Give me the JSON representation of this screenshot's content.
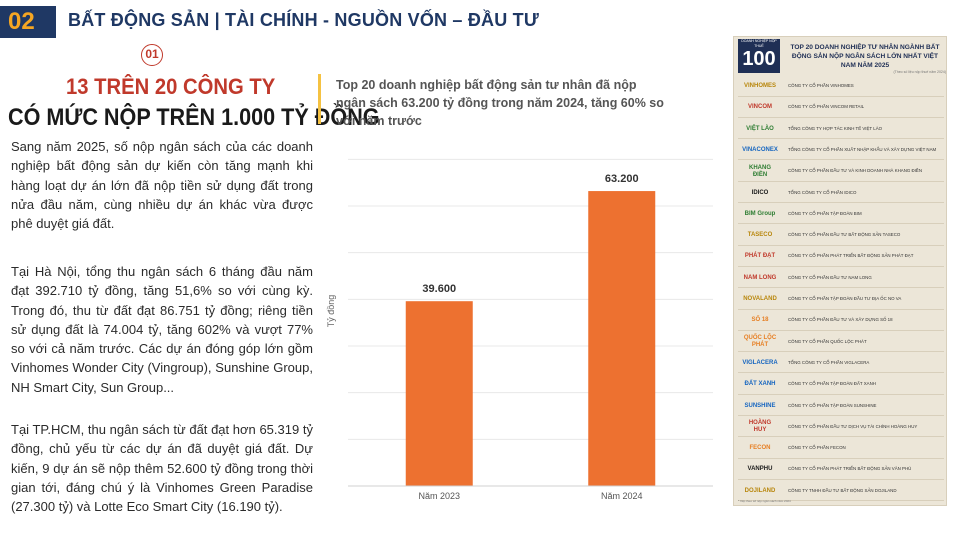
{
  "header": {
    "section_number": "02",
    "title": "BẤT ĐỘNG SẢN | TÀI CHÍNH - NGUỒN VỐN – ĐẦU TƯ"
  },
  "left": {
    "item_number": "01",
    "headline_line1": "13 TRÊN 20 CÔNG TY",
    "headline_line2": "CÓ MỨC NỘP TRÊN 1.000 TỶ ĐỒNG",
    "paragraphs": [
      "Sang năm 2025, số nộp ngân sách của các doanh nghiệp bất động sản dự kiến còn tăng mạnh khi hàng loạt dự án lớn đã nộp tiền sử dụng đất trong nửa đầu năm, cùng nhiều dự án khác vừa được phê duyệt giá đất.",
      "Tại Hà Nội, tổng thu ngân sách 6 tháng đầu năm đạt 392.710 tỷ đồng, tăng 51,6% so với cùng kỳ. Trong đó, thu từ đất đạt 86.751 tỷ đồng; riêng tiền sử dụng đất là 74.004 tỷ, tăng 602% và vượt 77% so với cả năm trước. Các dự án đóng góp lớn gồm Vinhomes Wonder City (Vingroup), Sunshine Group, NH Smart City, Sun Group...",
      "Tại TP.HCM, thu ngân sách từ đất đạt hơn 65.319 tỷ đồng, chủ yếu từ các dự án đã duyệt giá đất. Dự kiến, 9 dự án sẽ nộp thêm 52.600 tỷ đồng trong thời gian tới, đáng chú ý là Vinhomes Green Paradise (27.300 tỷ) và Lotte Eco Smart City (16.190 tỷ)."
    ]
  },
  "chart_data": {
    "type": "bar",
    "title": "Top 20 doanh nghiệp bất động sản tư nhân đã nộp ngân sách 63.200 tỷ  đồng trong năm 2024, tăng 60% so với năm trước",
    "categories": [
      "Năm 2023",
      "Năm 2024"
    ],
    "values": [
      39600,
      63200
    ],
    "value_labels": [
      "39.600",
      "63.200"
    ],
    "xlabel": "",
    "ylabel": "Tỷ đồng",
    "ylim": [
      0,
      75000
    ],
    "grid": true,
    "bar_color": "#ed7130"
  },
  "ranking": {
    "logo_top": "DOANH NGHIỆP NỘP THUẾ",
    "logo_text": "100",
    "title": "TOP 20 DOANH NGHIỆP TƯ NHÂN NGÀNH BẤT ĐỘNG SẢN NỘP NGÂN SÁCH LỚN NHẤT VIỆT NAM NĂM 2025",
    "note": "(Theo số liệu nộp thuế năm 2024)",
    "footnote": "* Xếp theo số nộp ngân sách năm 2024",
    "items": [
      {
        "logo": "VINHOMES",
        "name": "CÔNG TY CỔ PHẦN VINHOMES",
        "color": "#b8860b"
      },
      {
        "logo": "VINCOM",
        "name": "CÔNG TY CỔ PHẦN VINCOM RETAIL",
        "color": "#c0392b"
      },
      {
        "logo": "VIỆT LÀO",
        "name": "TỔNG CÔNG TY HỢP TÁC KINH TẾ VIỆT LÀO",
        "color": "#2e7d32"
      },
      {
        "logo": "VINACONEX",
        "name": "TỔNG CÔNG TY CỔ PHẦN XUẤT NHẬP KHẨU VÀ XÂY DỰNG VIỆT NAM",
        "color": "#1565c0"
      },
      {
        "logo": "KHANG ĐIỀN",
        "name": "CÔNG TY CỔ PHẦN ĐẦU TƯ VÀ KINH DOANH NHÀ KHANG ĐIỀN",
        "color": "#2e7d32"
      },
      {
        "logo": "IDICO",
        "name": "TỔNG CÔNG TY CỔ PHẦN IDICO",
        "color": "#1a1a1a"
      },
      {
        "logo": "BIM Group",
        "name": "CÔNG TY CỔ PHẦN TẬP ĐOÀN BIM",
        "color": "#2e7d32"
      },
      {
        "logo": "TASECO",
        "name": "CÔNG TY CỔ PHẦN ĐẦU TƯ BẤT ĐỘNG SẢN TASECO",
        "color": "#b8860b"
      },
      {
        "logo": "PHÁT ĐẠT",
        "name": "CÔNG TY CỔ PHẦN PHÁT TRIỂN BẤT ĐỘNG SẢN PHÁT ĐẠT",
        "color": "#c0392b"
      },
      {
        "logo": "NAM LONG",
        "name": "CÔNG TY CỔ PHẦN ĐẦU TƯ NAM LONG",
        "color": "#c0392b"
      },
      {
        "logo": "NOVALAND",
        "name": "CÔNG TY CỔ PHẦN TẬP ĐOÀN ĐẦU TƯ ĐỊA ỐC NO VA",
        "color": "#b8860b"
      },
      {
        "logo": "SỐ 18",
        "name": "CÔNG TY CỔ PHẦN ĐẦU TƯ VÀ XÂY DỰNG SỐ 18",
        "color": "#e67e22"
      },
      {
        "logo": "QUỐC LỘC PHÁT",
        "name": "CÔNG TY CỔ PHẦN QUỐC LỘC PHÁT",
        "color": "#e67e22"
      },
      {
        "logo": "VIGLACERA",
        "name": "TỔNG CÔNG TY CỔ PHẦN VIGLACERA",
        "color": "#1565c0"
      },
      {
        "logo": "ĐẤT XANH",
        "name": "CÔNG TY CỔ PHẦN TẬP ĐOÀN ĐẤT XANH",
        "color": "#1565c0"
      },
      {
        "logo": "SUNSHINE",
        "name": "CÔNG TY CỔ PHẦN TẬP ĐOÀN SUNSHINE",
        "color": "#1565c0"
      },
      {
        "logo": "HOÀNG HUY",
        "name": "CÔNG TY CỔ PHẦN ĐẦU TƯ DỊCH VỤ TÀI CHÍNH HOÀNG HUY",
        "color": "#c0392b"
      },
      {
        "logo": "FECON",
        "name": "CÔNG TY CỔ PHẦN FECON",
        "color": "#e67e22"
      },
      {
        "logo": "VANPHU",
        "name": "CÔNG TY CỔ PHẦN PHÁT TRIỂN BẤT ĐỘNG SẢN VĂN PHÚ",
        "color": "#1a1a1a"
      },
      {
        "logo": "DOJILAND",
        "name": "CÔNG TY TNHH ĐẦU TƯ BẤT ĐỘNG SẢN DOJILAND",
        "color": "#b8860b"
      }
    ]
  }
}
